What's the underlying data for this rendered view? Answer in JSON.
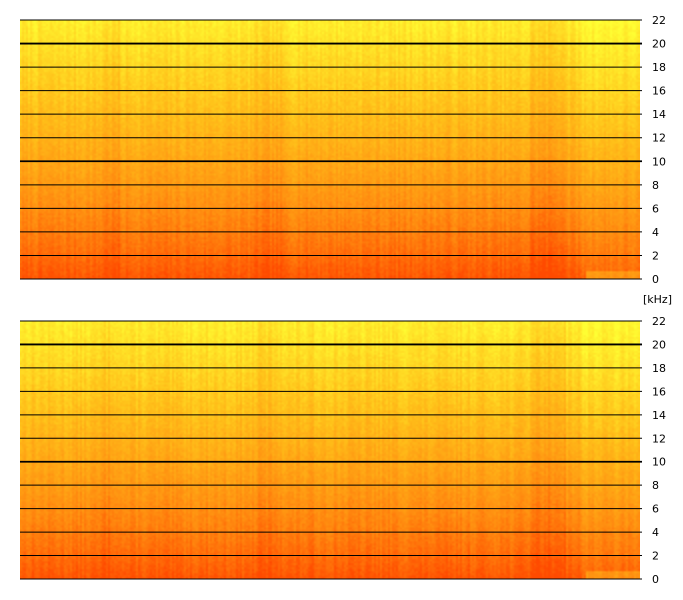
{
  "chart_data": [
    {
      "type": "heatmap",
      "description_kind": "spectrogram",
      "channel": "upper",
      "y_unit": "kHz",
      "ylim": [
        0,
        22
      ],
      "yticks": [
        "0",
        "2",
        "4",
        "6",
        "8",
        "10",
        "12",
        "14",
        "16",
        "18",
        "20",
        "22"
      ],
      "emphasized_gridlines": [
        10,
        20
      ],
      "grid": true,
      "colormap": [
        "#ffff33",
        "#ffc21a",
        "#ff8c10",
        "#ff4a00"
      ],
      "low_frequency_energy": "high",
      "high_frequency_energy": "low"
    },
    {
      "type": "heatmap",
      "description_kind": "spectrogram",
      "channel": "lower",
      "y_unit": "kHz",
      "ylim": [
        0,
        22
      ],
      "yticks": [
        "0",
        "2",
        "4",
        "6",
        "8",
        "10",
        "12",
        "14",
        "16",
        "18",
        "20",
        "22"
      ],
      "emphasized_gridlines": [
        10,
        20
      ],
      "grid": true,
      "colormap": [
        "#ffff33",
        "#ffc21a",
        "#ff8c10",
        "#ff4a00"
      ],
      "low_frequency_energy": "high",
      "high_frequency_energy": "low"
    }
  ],
  "unit_label": "[kHz]"
}
